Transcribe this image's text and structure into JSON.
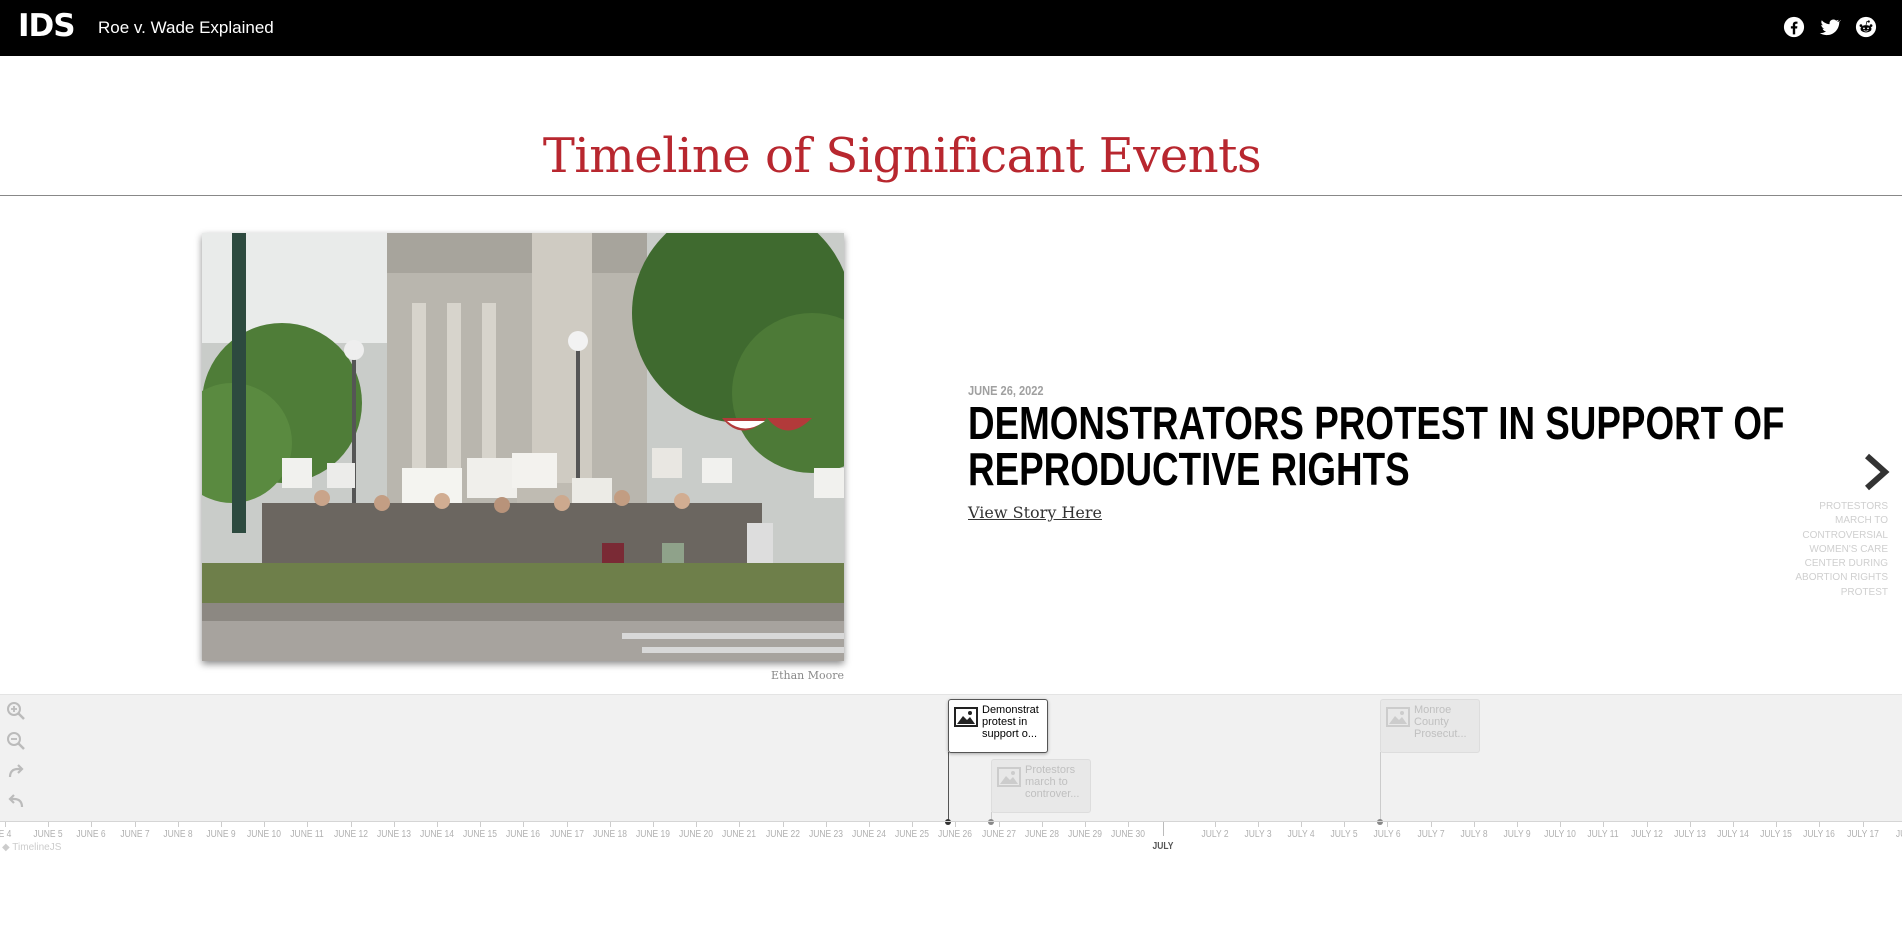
{
  "header": {
    "logo": "IDS",
    "site_title": "Roe v. Wade Explained",
    "social": [
      "facebook-icon",
      "twitter-icon",
      "reddit-icon"
    ]
  },
  "page": {
    "title": "Timeline of Significant Events",
    "accent_color": "#b8272f"
  },
  "slide": {
    "date": "JUNE 26, 2022",
    "headline": "DEMONSTRATORS PROTEST IN SUPPORT OF REPRODUCTIVE RIGHTS",
    "link_text": "View Story Here",
    "photo_credit": "Ethan Moore",
    "next_title": "PROTESTORS MARCH TO CONTROVERSIAL WOMEN'S CARE CENTER DURING ABORTION RIGHTS PROTEST"
  },
  "navigator": {
    "markers": [
      {
        "label": "Demonstrat protest in support o...",
        "active": true
      },
      {
        "label": "Protestors march to controver...",
        "active": false
      },
      {
        "label": "Monroe County Prosecut...",
        "active": false
      }
    ],
    "ticks": [
      "E 4",
      "JUNE 5",
      "JUNE 6",
      "JUNE 7",
      "JUNE 8",
      "JUNE 9",
      "JUNE 10",
      "JUNE 11",
      "JUNE 12",
      "JUNE 13",
      "JUNE 14",
      "JUNE 15",
      "JUNE 16",
      "JUNE 17",
      "JUNE 18",
      "JUNE 19",
      "JUNE 20",
      "JUNE 21",
      "JUNE 22",
      "JUNE 23",
      "JUNE 24",
      "JUNE 25",
      "JUNE 26",
      "JUNE 27",
      "JUNE 28",
      "JUNE 29",
      "JUNE 30",
      "",
      "JULY 2",
      "JULY 3",
      "JULY 4",
      "JULY 5",
      "JULY 6",
      "JULY 7",
      "JULY 8",
      "JULY 9",
      "JULY 10",
      "JULY 11",
      "JULY 12",
      "JULY 13",
      "JULY 14",
      "JULY 15",
      "JULY 16",
      "JULY 17",
      "JULY"
    ],
    "month_label": "JULY",
    "credit": "TimelineJS"
  }
}
